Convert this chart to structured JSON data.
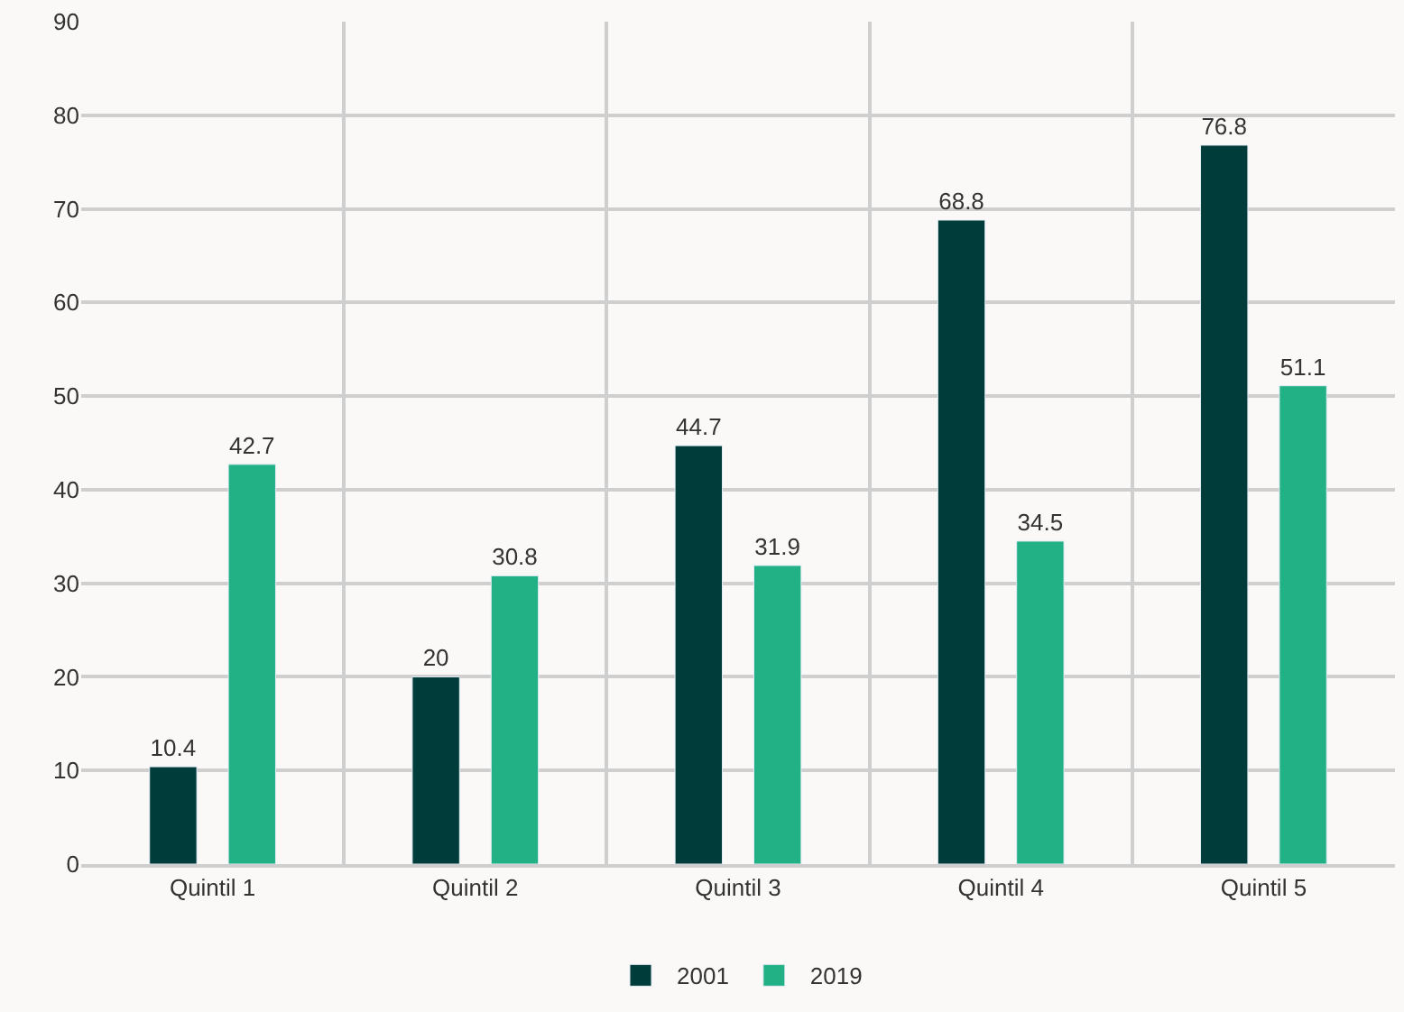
{
  "chart_data": {
    "type": "bar",
    "categories": [
      "Quintil 1",
      "Quintil 2",
      "Quintil 3",
      "Quintil 4",
      "Quintil 5"
    ],
    "series": [
      {
        "name": "2001",
        "color": "#003d3a",
        "values": [
          10.4,
          20,
          44.7,
          68.8,
          76.8
        ]
      },
      {
        "name": "2019",
        "color": "#22b185",
        "values": [
          42.7,
          30.8,
          31.9,
          34.5,
          51.1
        ]
      }
    ],
    "ylim": [
      0,
      90
    ],
    "yticks": [
      0,
      10,
      20,
      30,
      40,
      50,
      60,
      70,
      80,
      90
    ],
    "grid": true,
    "legend": "bottom",
    "data_labels": true
  }
}
